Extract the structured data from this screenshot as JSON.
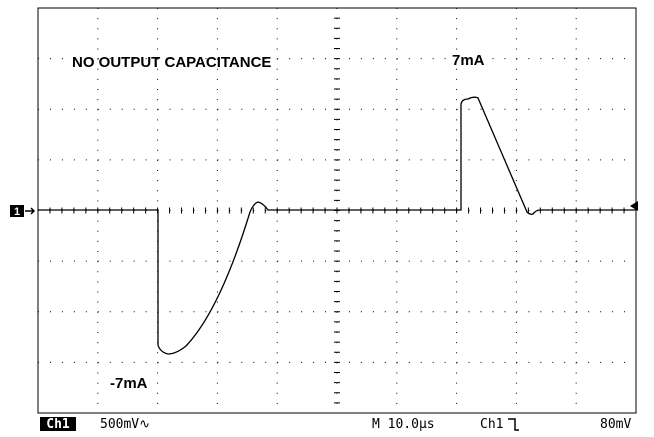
{
  "annotations": {
    "title": "NO OUTPUT CAPACITANCE",
    "positive": "7mA",
    "negative": "-7mA"
  },
  "status_bar": {
    "channel": "Ch1",
    "scale": "500mV∿",
    "timebase": "M 10.0µs",
    "trigger_source": "Ch1",
    "trigger_level": "80mV"
  },
  "marker": {
    "channel": "1"
  }
}
